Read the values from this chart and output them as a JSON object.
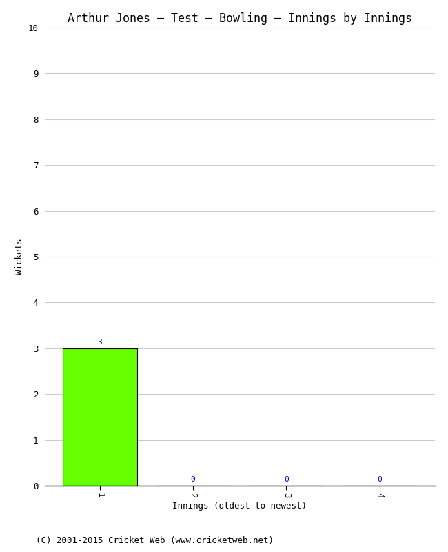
{
  "title": "Arthur Jones – Test – Bowling – Innings by Innings",
  "xlabel": "Innings (oldest to newest)",
  "ylabel": "Wickets",
  "categories": [
    1,
    2,
    3,
    4
  ],
  "values": [
    3,
    0,
    0,
    0
  ],
  "bar_color": "#66ff00",
  "bar_edge_color": "#000000",
  "ylim": [
    0,
    10
  ],
  "yticks": [
    0,
    1,
    2,
    3,
    4,
    5,
    6,
    7,
    8,
    9,
    10
  ],
  "xticks": [
    1,
    2,
    3,
    4
  ],
  "annotation_color": "#0000cc",
  "annotation_fontsize": 8,
  "title_fontsize": 12,
  "label_fontsize": 9,
  "tick_fontsize": 9,
  "bg_color": "#ffffff",
  "grid_color": "#cccccc",
  "footer": "(C) 2001-2015 Cricket Web (www.cricketweb.net)",
  "footer_fontsize": 9
}
